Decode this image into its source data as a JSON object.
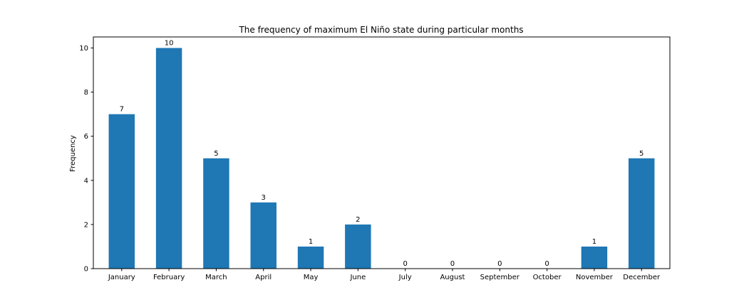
{
  "chart_data": {
    "type": "bar",
    "title": "The frequency of maximum El Niño state during particular months",
    "xlabel": "",
    "ylabel": "Frequency",
    "categories": [
      "January",
      "February",
      "March",
      "April",
      "May",
      "June",
      "July",
      "August",
      "September",
      "October",
      "November",
      "December"
    ],
    "values": [
      7,
      10,
      5,
      3,
      1,
      2,
      0,
      0,
      0,
      0,
      1,
      5
    ],
    "data_labels": [
      "7",
      "10",
      "5",
      "3",
      "1",
      "2",
      "0",
      "0",
      "0",
      "0",
      "1",
      "5"
    ],
    "ylim": [
      0,
      10.5
    ],
    "yticks": [
      0,
      2,
      4,
      6,
      8,
      10
    ],
    "ytick_labels": [
      "0",
      "2",
      "4",
      "6",
      "8",
      "10"
    ],
    "grid": false,
    "legend": "none",
    "bar_color": "#1f77b4"
  }
}
